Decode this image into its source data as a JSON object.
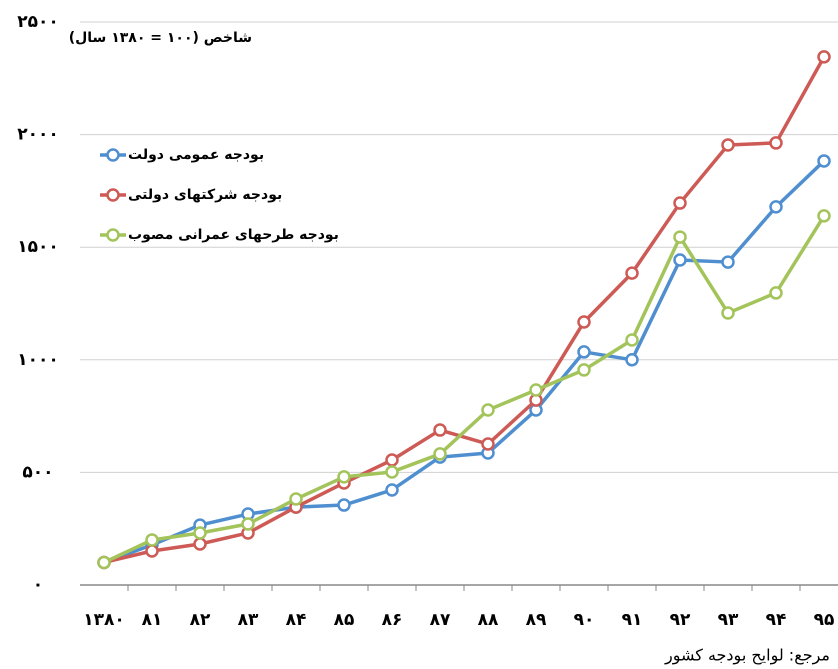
{
  "chart_data": {
    "type": "line",
    "title": "شاخص (۱۰۰ = ۱۳۸۰ سال)",
    "source": "مرجع: لوایح بودجه کشور",
    "categories": [
      "۱۳۸۰",
      "۸۱",
      "۸۲",
      "۸۳",
      "۸۴",
      "۸۵",
      "۸۶",
      "۸۷",
      "۸۸",
      "۸۹",
      "۹۰",
      "۹۱",
      "۹۲",
      "۹۳",
      "۹۴",
      "۹۵"
    ],
    "series": [
      {
        "name": "بودجه عمومی دولت",
        "color": "#4f8fd0",
        "values": [
          100,
          178,
          266,
          315,
          346,
          355,
          422,
          568,
          586,
          777,
          1035,
          1000,
          1443,
          1434,
          1679,
          1883
        ]
      },
      {
        "name": "بودجه شرکتهای دولتی",
        "color": "#cd5a55",
        "values": [
          100,
          151,
          182,
          231,
          346,
          453,
          555,
          688,
          626,
          821,
          1168,
          1385,
          1696,
          1954,
          1963,
          2345
        ]
      },
      {
        "name": "بودجه طرحهای عمرانی مصوب",
        "color": "#a3c45a",
        "values": [
          100,
          200,
          231,
          271,
          382,
          480,
          502,
          582,
          777,
          866,
          955,
          1088,
          1545,
          1208,
          1297,
          1639
        ]
      }
    ],
    "ylim": [
      0,
      2500
    ],
    "yticks": [
      {
        "value": 0,
        "label": "۰"
      },
      {
        "value": 500,
        "label": "۵۰۰"
      },
      {
        "value": 1000,
        "label": "۱۰۰۰"
      },
      {
        "value": 1500,
        "label": "۱۵۰۰"
      },
      {
        "value": 2000,
        "label": "۲۰۰۰"
      },
      {
        "value": 2500,
        "label": "۲۵۰۰"
      }
    ],
    "grid": true,
    "legend": "upper left"
  }
}
